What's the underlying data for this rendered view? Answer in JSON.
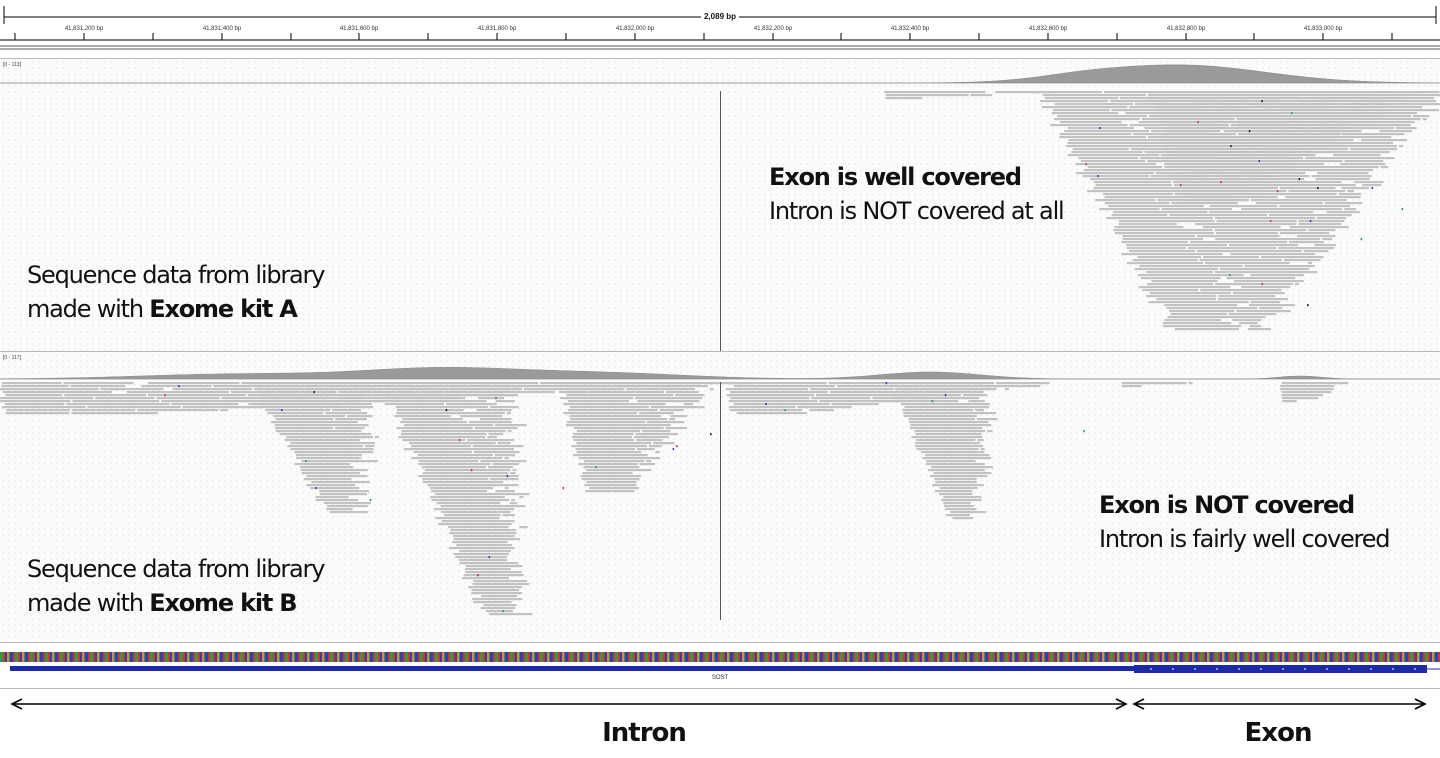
{
  "ruler": {
    "span_label": "2,089 bp",
    "ticks": [
      "41,831,200 bp",
      "41,831,400 bp",
      "41,831,600 bp",
      "41,831,800 bp",
      "41,832,000 bp",
      "41,832,200 bp",
      "41,832,400 bp",
      "41,832,600 bp",
      "41,832,800 bp",
      "41,833,000 bp"
    ]
  },
  "track_a": {
    "range": "[0 - 113]",
    "caption_line1": "Sequence data from library",
    "caption_line2_prefix": "made with ",
    "caption_line2_bold": "Exome kit A",
    "note_bold": "Exon is well covered",
    "note": "Intron is NOT covered at all"
  },
  "track_b": {
    "range": "[0 - 117]",
    "caption_line1": "Sequence data from library",
    "caption_line2_prefix": "made with ",
    "caption_line2_bold": "Exome kit B",
    "note_bold": "Exon is NOT covered",
    "note": "Intron is fairly well covered"
  },
  "gene": {
    "name": "SOST"
  },
  "regions": {
    "intron": "Intron",
    "exon": "Exon"
  },
  "colors": {
    "read": "#c2c2c2",
    "coverage": "#9a9a9a",
    "gene": "#1c2ca8",
    "sequence_green": "#2e9d3c",
    "sequence_red": "#d8302a",
    "sequence_blue": "#2b3fc6",
    "sequence_orange": "#e08a1c"
  }
}
